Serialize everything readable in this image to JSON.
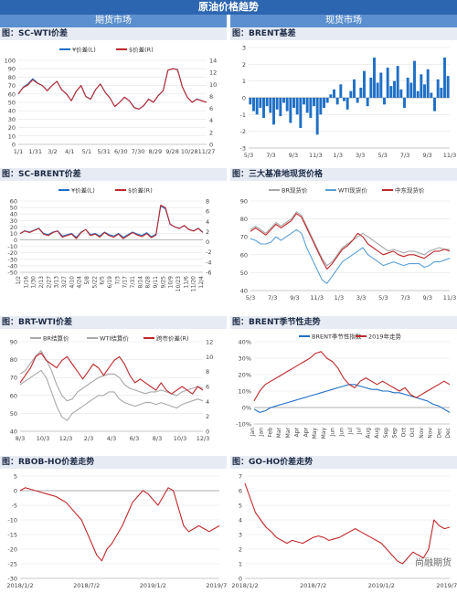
{
  "header": {
    "title": "原油价格趋势",
    "left_section": "期货市场",
    "right_section": "现货市场"
  },
  "watermark": "尚融期货",
  "colors": {
    "blue": "#1f6fc6",
    "red": "#c0282c",
    "gray": "#a8a8a8",
    "lightblue": "#5a9fd6"
  },
  "charts": [
    {
      "id": "sc_wti",
      "title": "图：SC-WTI价差",
      "chart_data": {
        "type": "line",
        "legend": [
          "¥价差(L)",
          "$价差(R)"
        ],
        "x_ticks": [
          "1/1",
          "1/31",
          "3/2",
          "4/1",
          "5/1",
          "5/31",
          "6/30",
          "7/30",
          "8/29",
          "9/28",
          "10/28",
          "11/27"
        ],
        "y_left": {
          "min": 0,
          "max": 100,
          "ticks": [
            "0",
            "10",
            "20",
            "30",
            "40",
            "50",
            "60",
            "70",
            "80",
            "90",
            "100"
          ]
        },
        "y_right": {
          "min": 0,
          "max": 16,
          "ticks": [
            "0",
            "2",
            "4",
            "6",
            "8",
            "10",
            "12",
            "14"
          ]
        },
        "series": [
          {
            "name": "¥价差(L)",
            "axis": "left",
            "color": "#1f6fc6",
            "values": [
              60,
              68,
              72,
              78,
              73,
              70,
              64,
              70,
              75,
              65,
              60,
              52,
              63,
              70,
              57,
              54,
              65,
              72,
              62,
              55,
              45,
              50,
              56,
              52,
              44,
              42,
              46,
              54,
              50,
              58,
              64,
              88,
              90,
              89,
              68,
              56,
              50,
              54,
              52,
              50
            ]
          },
          {
            "name": "$价差(R)",
            "axis": "right",
            "color": "#c0282c",
            "values": [
              9.6,
              10.8,
              11.3,
              12.3,
              11.6,
              11.2,
              10.2,
              11.2,
              12.0,
              10.4,
              9.6,
              8.3,
              10.1,
              11.2,
              9.1,
              8.6,
              10.4,
              11.5,
              9.9,
              8.8,
              7.2,
              8.0,
              9.0,
              8.3,
              7.0,
              6.7,
              7.4,
              8.6,
              8.0,
              9.3,
              10.2,
              14.1,
              14.4,
              14.2,
              10.9,
              9.0,
              8.0,
              8.6,
              8.3,
              8.0
            ]
          }
        ]
      }
    },
    {
      "id": "brent_basis",
      "title": "图：BRENT基差",
      "chart_data": {
        "type": "bar",
        "x_ticks": [
          "5/3",
          "7/3",
          "9/3",
          "11/3",
          "1/3",
          "3/3",
          "5/3",
          "7/3",
          "9/3",
          "11/3"
        ],
        "y_left": {
          "min": -3,
          "max": 3,
          "ticks": [
            "-3",
            "-2",
            "-1",
            "0",
            "1",
            "2",
            "3"
          ]
        },
        "series": [
          {
            "name": "BRENT基差",
            "color": "#1f6fc6",
            "values": [
              -0.4,
              -0.8,
              -1.0,
              -0.6,
              -1.2,
              -0.5,
              -0.9,
              -1.6,
              -0.7,
              -1.1,
              -0.3,
              -0.8,
              -1.5,
              -0.6,
              -1.0,
              -1.8,
              -0.4,
              -0.9,
              -1.2,
              -0.5,
              -2.2,
              -1.0,
              -0.6,
              -0.3,
              0.2,
              0.5,
              -0.4,
              0.8,
              -0.2,
              -0.7,
              0.4,
              1.1,
              -0.3,
              0.6,
              1.6,
              -0.5,
              1.2,
              2.4,
              0.9,
              1.5,
              -0.4,
              1.8,
              0.7,
              1.0,
              1.9,
              0.5,
              -0.6,
              1.2,
              0.9,
              2.2,
              0.4,
              1.4,
              0.8,
              1.7,
              0.3,
              -0.8,
              1.1,
              0.6,
              2.4,
              1.3
            ]
          }
        ]
      }
    },
    {
      "id": "sc_brent",
      "title": "图：SC-BRENT价差",
      "chart_data": {
        "type": "line",
        "legend": [
          "¥价差(L)",
          "$价差(R)"
        ],
        "x_ticks": [
          "1/2",
          "1/16",
          "1/30",
          "2/13",
          "2/27",
          "3/13",
          "3/27",
          "4/10",
          "4/24",
          "5/8",
          "5/22",
          "6/5",
          "6/19",
          "7/3",
          "7/17",
          "7/31",
          "8/14",
          "8/28",
          "9/11",
          "9/25",
          "10/9",
          "10/23",
          "11/6",
          "11/20",
          "12/4"
        ],
        "y_left": {
          "min": -50,
          "max": 60,
          "ticks": [
            "-50",
            "-40",
            "-30",
            "-20",
            "-10",
            "0",
            "10",
            "20",
            "30",
            "40",
            "50",
            "60"
          ]
        },
        "y_right": {
          "min": -6,
          "max": 8,
          "ticks": [
            "-6",
            "-4",
            "-2",
            "0",
            "2",
            "4",
            "6",
            "8"
          ]
        },
        "series": [
          {
            "name": "¥价差(L)",
            "axis": "left",
            "color": "#1f6fc6",
            "values": [
              10,
              14,
              12,
              15,
              18,
              10,
              8,
              12,
              14,
              6,
              8,
              10,
              4,
              12,
              16,
              8,
              10,
              6,
              12,
              8,
              6,
              10,
              4,
              8,
              12,
              9,
              7,
              11,
              5,
              9,
              52,
              48,
              24,
              20,
              18,
              22,
              16,
              14,
              18,
              12
            ]
          },
          {
            "name": "$价差(R)",
            "axis": "right",
            "color": "#c0282c",
            "values": [
              1.6,
              2.1,
              1.8,
              2.2,
              2.6,
              1.5,
              1.2,
              1.8,
              2.1,
              0.9,
              1.2,
              1.5,
              0.6,
              1.8,
              2.4,
              1.2,
              1.5,
              0.9,
              1.8,
              1.2,
              0.9,
              1.5,
              0.6,
              1.2,
              1.8,
              1.3,
              1.0,
              1.6,
              0.8,
              1.3,
              7.2,
              6.7,
              3.5,
              2.9,
              2.6,
              3.2,
              2.4,
              2.1,
              2.6,
              1.8
            ]
          }
        ]
      }
    },
    {
      "id": "spot_three",
      "title": "图：三大基准地现货价格",
      "chart_data": {
        "type": "line",
        "legend": [
          "BR现货价",
          "WTI现货价",
          "中东现货价"
        ],
        "x_ticks": [
          "5/3",
          "7/3",
          "9/3",
          "11/3",
          "1/3",
          "3/3",
          "5/3",
          "7/3",
          "9/3",
          "11/3"
        ],
        "y_left": {
          "min": 40,
          "max": 90,
          "ticks": [
            "40",
            "50",
            "60",
            "70",
            "80",
            "90"
          ]
        },
        "series": [
          {
            "name": "BR现货价",
            "color": "#a8a8a8",
            "values": [
              74,
              76,
              74,
              72,
              75,
              78,
              76,
              78,
              80,
              84,
              82,
              76,
              70,
              64,
              58,
              54,
              56,
              60,
              64,
              66,
              68,
              70,
              72,
              70,
              68,
              66,
              64,
              62,
              63,
              62,
              61,
              62,
              62,
              61,
              60,
              62,
              63,
              64,
              63,
              63
            ]
          },
          {
            "name": "WTI现货价",
            "color": "#5a9fd6",
            "values": [
              69,
              68,
              66,
              66,
              67,
              70,
              68,
              70,
              72,
              74,
              72,
              64,
              58,
              52,
              46,
              44,
              48,
              52,
              56,
              58,
              60,
              62,
              64,
              60,
              58,
              56,
              54,
              55,
              56,
              55,
              54,
              55,
              55,
              55,
              53,
              54,
              56,
              56,
              57,
              58
            ]
          },
          {
            "name": "中东现货价",
            "color": "#c0282c",
            "values": [
              73,
              75,
              73,
              71,
              74,
              77,
              75,
              77,
              79,
              83,
              81,
              75,
              69,
              63,
              57,
              52,
              55,
              59,
              63,
              65,
              68,
              72,
              70,
              66,
              64,
              62,
              60,
              61,
              62,
              60,
              59,
              60,
              60,
              59,
              58,
              60,
              62,
              62,
              63,
              62
            ]
          }
        ]
      }
    },
    {
      "id": "brt_wti",
      "title": "图：BRT-WTI价差",
      "chart_data": {
        "type": "line",
        "legend": [
          "BR结算价",
          "WTI结算价",
          "跨市价差(R)"
        ],
        "x_ticks": [
          "8/3",
          "10/3",
          "12/3",
          "2/3",
          "4/3",
          "6/3",
          "8/3",
          "10/3",
          "12/3"
        ],
        "y_left": {
          "min": 40,
          "max": 90,
          "ticks": [
            "40",
            "50",
            "60",
            "70",
            "80",
            "90"
          ]
        },
        "y_right": {
          "min": 0,
          "max": 12,
          "ticks": [
            "0",
            "2",
            "4",
            "6",
            "8",
            "10",
            "12"
          ]
        },
        "series": [
          {
            "name": "BR结算价",
            "color": "#a8a8a8",
            "values": [
              72,
              74,
              78,
              82,
              85,
              80,
              74,
              66,
              60,
              57,
              58,
              62,
              64,
              66,
              68,
              70,
              71,
              72,
              72,
              70,
              66,
              64,
              63,
              62,
              61,
              62,
              62,
              63,
              62,
              61,
              60,
              62,
              63,
              64,
              65,
              64
            ]
          },
          {
            "name": "WTI结算价",
            "color": "#a8a8a8",
            "values": [
              66,
              68,
              70,
              72,
              74,
              70,
              62,
              54,
              48,
              46,
              50,
              52,
              54,
              56,
              58,
              60,
              60,
              62,
              62,
              58,
              56,
              55,
              54,
              55,
              56,
              56,
              55,
              56,
              55,
              54,
              53,
              55,
              56,
              57,
              58,
              57
            ]
          },
          {
            "name": "跨市价差(R)",
            "axis": "right",
            "color": "#c0282c",
            "values": [
              6.5,
              7.5,
              8.5,
              10.0,
              10.5,
              9.5,
              9.0,
              8.5,
              9.5,
              10.0,
              9.0,
              8.0,
              7.0,
              8.0,
              9.0,
              8.5,
              7.5,
              8.5,
              9.5,
              10.0,
              9.0,
              7.5,
              6.5,
              7.0,
              6.5,
              6.0,
              5.5,
              6.5,
              5.5,
              5.0,
              5.5,
              6.0,
              5.5,
              5.0,
              6.0,
              5.5
            ]
          }
        ]
      }
    },
    {
      "id": "brent_seasonal",
      "title": "图：BRENT季节性走势",
      "chart_data": {
        "type": "line",
        "legend": [
          "BRENT季节性指数",
          "2019年走势"
        ],
        "x_ticks": [
          "Jan",
          "Jan",
          "Feb",
          "Mar",
          "Mar",
          "Apr",
          "Apr",
          "May",
          "May",
          "Jun",
          "Jun",
          "Jul",
          "Jul",
          "Aug",
          "Aug",
          "Sep",
          "Sep",
          "Oct",
          "Oct",
          "Nov",
          "Nov",
          "Dec",
          "Dec"
        ],
        "y_left": {
          "min": -10,
          "max": 40,
          "ticks": [
            "-10%",
            "0%",
            "10%",
            "20%",
            "30%",
            "40%"
          ]
        },
        "series": [
          {
            "name": "BRENT季节性指数",
            "color": "#1f6fc6",
            "values": [
              -1,
              -3,
              -2,
              0,
              1,
              2,
              3,
              4,
              5,
              6,
              7,
              8,
              9,
              10,
              11,
              12,
              13,
              14,
              14,
              13,
              12,
              11,
              11,
              10,
              10,
              9,
              9,
              8,
              7,
              6,
              5,
              4,
              2,
              1,
              -1,
              -3
            ]
          },
          {
            "name": "2019年走势",
            "color": "#c0282c",
            "values": [
              4,
              10,
              14,
              16,
              18,
              20,
              22,
              24,
              26,
              28,
              30,
              33,
              34,
              30,
              28,
              24,
              18,
              14,
              12,
              16,
              18,
              16,
              14,
              16,
              14,
              12,
              10,
              12,
              8,
              6,
              8,
              10,
              12,
              14,
              16,
              14
            ]
          }
        ]
      }
    },
    {
      "id": "rbob_ho",
      "title": "图：RBOB-HO价差走势",
      "chart_data": {
        "type": "line",
        "x_ticks": [
          "2018/1/2",
          "2018/7/2",
          "2019/1/2",
          "2019/7/2"
        ],
        "y_left": {
          "min": -30,
          "max": 5,
          "ticks": [
            "-30",
            "-25",
            "-20",
            "-15",
            "-10",
            "-5",
            "0",
            "5"
          ]
        },
        "series": [
          {
            "name": "RBOB-HO价差",
            "color": "#c0282c",
            "values": [
              0,
              1,
              0.5,
              0,
              -0.5,
              -1,
              -1.5,
              -2,
              -3,
              -4,
              -6,
              -8,
              -10,
              -14,
              -18,
              -22,
              -24,
              -20,
              -18,
              -15,
              -12,
              -8,
              -4,
              -2,
              0,
              -1,
              -3,
              -5,
              -2,
              1,
              0,
              -6,
              -12,
              -14,
              -13,
              -12,
              -13,
              -14,
              -13,
              -12
            ]
          }
        ]
      }
    },
    {
      "id": "go_ho",
      "title": "图：GO-HO价差走势",
      "chart_data": {
        "type": "line",
        "x_ticks": [
          "2018/1/2",
          "2018/7/2",
          "2019/1/2",
          "2019/7/2"
        ],
        "y_left": {
          "min": 0,
          "max": 7,
          "ticks": [
            "0",
            "1",
            "2",
            "3",
            "4",
            "5",
            "6",
            "7"
          ]
        },
        "series": [
          {
            "name": "GO-HO价差",
            "color": "#c0282c",
            "values": [
              6.5,
              5.5,
              4.5,
              4.0,
              3.5,
              3.2,
              2.8,
              2.6,
              2.4,
              2.6,
              2.5,
              2.4,
              2.6,
              2.8,
              2.9,
              2.8,
              2.6,
              2.7,
              2.8,
              3.0,
              3.2,
              3.4,
              3.2,
              3.0,
              2.8,
              2.6,
              2.4,
              2.0,
              1.6,
              1.2,
              1.0,
              1.4,
              1.8,
              1.6,
              1.4,
              2.0,
              4.0,
              3.6,
              3.4,
              3.5
            ]
          }
        ]
      }
    }
  ]
}
